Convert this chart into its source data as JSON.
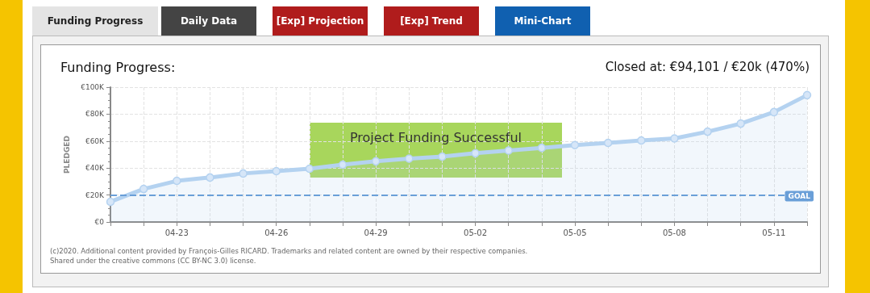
{
  "chart_data": {
    "type": "area",
    "title": "Funding Progress:",
    "subtitle": "Closed at: €94,101 / €20k (470%)",
    "ylabel": "PLEDGED",
    "annotations": [
      "Funding Progress",
      "Daily Data",
      "[Exp] Projection",
      "[Exp] Trend",
      "Mini-Chart",
      "Project Funding Successful",
      "(c)2020. Additional content provided by François-Gilles RICARD. Trademarks and related content are owned by their respective companies.",
      "Shared under the creative commons (CC BY-NC 3.0) license."
    ],
    "x": [
      "--04-21",
      "--04-22",
      "--04-23",
      "--04-24",
      "--04-25",
      "--04-26",
      "--04-27",
      "--04-28",
      "--04-29",
      "--04-30",
      "--05-01",
      "--05-02",
      "--05-03",
      "--05-04",
      "--05-05",
      "--05-06",
      "--05-07",
      "--05-08",
      "--05-09",
      "--05-10",
      "--05-11",
      "--05-12"
    ],
    "series": [
      {
        "color": "#b4d2f0",
        "values": [
          15000,
          24500,
          30500,
          33000,
          36000,
          37700,
          39500,
          42500,
          45000,
          47000,
          48500,
          51000,
          53000,
          55000,
          57000,
          58700,
          60500,
          62000,
          67000,
          73000,
          81500,
          94101
        ]
      }
    ],
    "xlim": [
      "--04-21",
      "--05-12"
    ],
    "xticks": [
      {
        "value": "--04-23",
        "label": "04-23"
      },
      {
        "value": "--04-26",
        "label": "04-26"
      },
      {
        "value": "--04-29",
        "label": "04-29"
      },
      {
        "value": "--05-02",
        "label": "05-02"
      },
      {
        "value": "--05-05",
        "label": "05-05"
      },
      {
        "value": "--05-08",
        "label": "05-08"
      },
      {
        "value": "--05-11",
        "label": "05-11"
      }
    ],
    "ylim": [
      0,
      100000
    ],
    "yticks": [
      {
        "value": 0,
        "label": "€0"
      },
      {
        "value": 20000,
        "label": "€20K"
      },
      {
        "value": 40000,
        "label": "€40K"
      },
      {
        "value": 60000,
        "label": "€60K"
      },
      {
        "value": 80000,
        "label": "€80K"
      },
      {
        "value": 100000,
        "label": "€100K"
      }
    ],
    "ref_lines": [
      {
        "axis": "y",
        "value": 20000,
        "label": "GOAL",
        "color": "#6a9fd8",
        "line_style": "dashed"
      }
    ],
    "grid": true,
    "marker": "circle",
    "line_style": "solid"
  }
}
